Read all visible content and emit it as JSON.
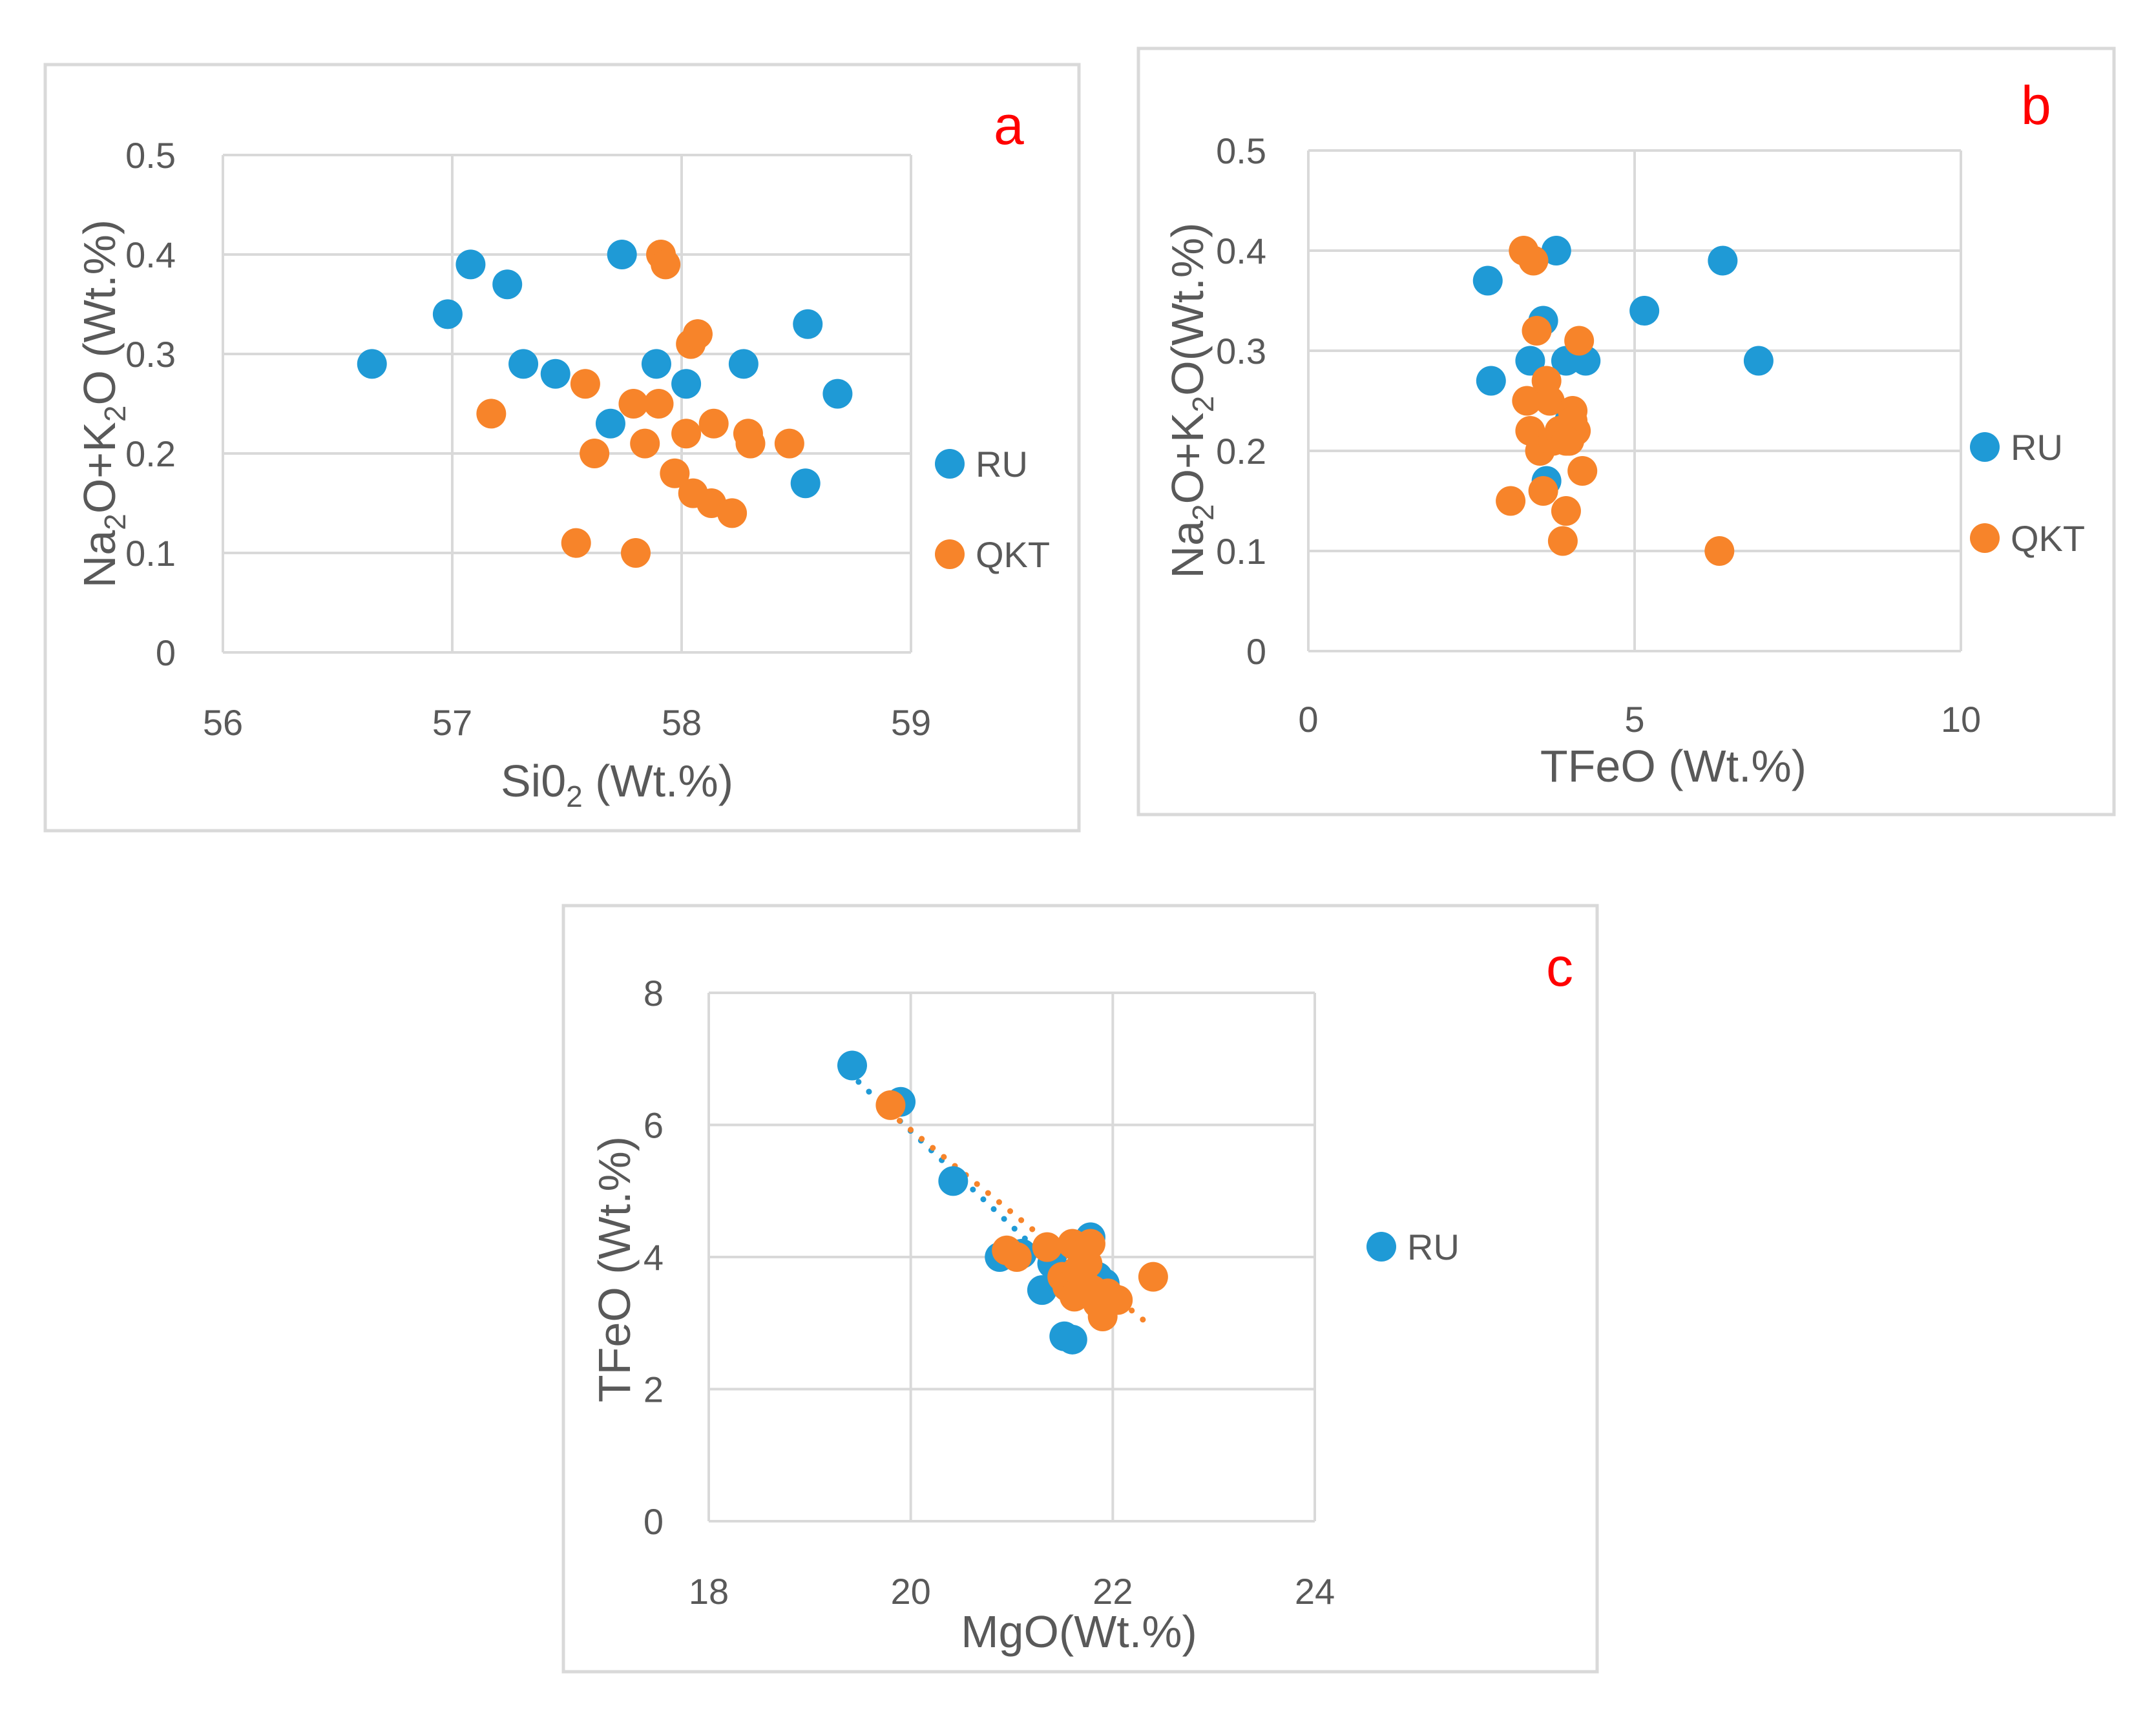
{
  "colors": {
    "RU": "#1f9ad6",
    "QKT": "#f7842a",
    "grid": "#d9d9d9",
    "text": "#595959",
    "label": "#ff0000"
  },
  "chart_data": [
    {
      "panel": "a",
      "type": "scatter",
      "xlabel_main": "Si0",
      "xlabel_sub": "2",
      "xlabel_tail": " (Wt.%)",
      "ylabel": [
        {
          "t": "Na",
          "sub": false
        },
        {
          "t": "2",
          "sub": true
        },
        {
          "t": "O+K",
          "sub": false
        },
        {
          "t": "2",
          "sub": true
        },
        {
          "t": "O (Wt.%)",
          "sub": false
        }
      ],
      "xlim": [
        56,
        59
      ],
      "ylim": [
        0,
        0.5
      ],
      "xticks": [
        56,
        57,
        58,
        59
      ],
      "yticks": [
        0,
        0.1,
        0.2,
        0.3,
        0.4,
        0.5
      ],
      "ytick_labels": [
        "0",
        "0.1",
        "0.2",
        "0.3",
        "0.4",
        "0.5"
      ],
      "legend": [
        "RU",
        "QKT"
      ],
      "series": [
        {
          "name": "RU",
          "x": [
            56.65,
            56.98,
            57.08,
            57.24,
            57.31,
            57.45,
            57.69,
            57.74,
            57.89,
            58.02,
            58.27,
            58.54,
            58.55,
            58.68
          ],
          "y": [
            0.29,
            0.34,
            0.39,
            0.37,
            0.29,
            0.28,
            0.23,
            0.4,
            0.29,
            0.27,
            0.29,
            0.17,
            0.33,
            0.26
          ]
        },
        {
          "name": "QKT",
          "x": [
            57.17,
            57.54,
            57.58,
            57.62,
            57.79,
            57.8,
            57.84,
            57.9,
            57.91,
            57.93,
            57.97,
            58.02,
            58.04,
            58.05,
            58.07,
            58.07,
            58.13,
            58.14,
            58.22,
            58.29,
            58.3,
            58.47
          ],
          "y": [
            0.24,
            0.11,
            0.27,
            0.2,
            0.25,
            0.1,
            0.21,
            0.25,
            0.4,
            0.39,
            0.18,
            0.22,
            0.31,
            0.16,
            0.32,
            0.32,
            0.15,
            0.23,
            0.14,
            0.22,
            0.21,
            0.21
          ]
        }
      ]
    },
    {
      "panel": "b",
      "type": "scatter",
      "xlabel_main": "TFeO (Wt.%)",
      "ylabel": [
        {
          "t": "Na",
          "sub": false
        },
        {
          "t": "2",
          "sub": true
        },
        {
          "t": "O+K",
          "sub": false
        },
        {
          "t": "2",
          "sub": true
        },
        {
          "t": "O(Wt.%)",
          "sub": false
        }
      ],
      "xlim": [
        0,
        10
      ],
      "ylim": [
        0,
        0.5
      ],
      "xticks": [
        0,
        5,
        10
      ],
      "yticks": [
        0,
        0.1,
        0.2,
        0.3,
        0.4,
        0.5
      ],
      "ytick_labels": [
        "0",
        "0.1",
        "0.2",
        "0.3",
        "0.4",
        "0.5"
      ],
      "legend": [
        "RU",
        "QKT"
      ],
      "series": [
        {
          "name": "RU",
          "x": [
            2.75,
            2.8,
            3.4,
            3.6,
            3.65,
            3.8,
            3.95,
            4.25,
            5.15,
            6.35,
            6.9,
            4.0
          ],
          "y": [
            0.37,
            0.27,
            0.29,
            0.33,
            0.17,
            0.4,
            0.29,
            0.29,
            0.34,
            0.39,
            0.29,
            0.23
          ]
        },
        {
          "name": "QKT",
          "x": [
            3.1,
            3.3,
            3.35,
            3.4,
            3.45,
            3.5,
            3.55,
            3.6,
            3.65,
            3.7,
            3.75,
            3.85,
            3.9,
            3.95,
            4.0,
            4.05,
            4.1,
            4.15,
            4.2,
            6.3,
            4.05,
            3.95
          ],
          "y": [
            0.15,
            0.4,
            0.25,
            0.22,
            0.39,
            0.32,
            0.2,
            0.16,
            0.27,
            0.25,
            0.21,
            0.22,
            0.11,
            0.14,
            0.21,
            0.24,
            0.22,
            0.31,
            0.18,
            0.1,
            0.23,
            0.21
          ]
        }
      ]
    },
    {
      "panel": "c",
      "type": "scatter",
      "xlabel_main": "MgO(Wt.%)",
      "ylabel": [
        {
          "t": "TFeO (Wt.%)",
          "sub": false
        }
      ],
      "xlim": [
        18,
        24
      ],
      "ylim": [
        0,
        8
      ],
      "xticks": [
        18,
        20,
        22,
        24
      ],
      "yticks": [
        0,
        2,
        4,
        6,
        8
      ],
      "ytick_labels": [
        "0",
        "2",
        "4",
        "6",
        "8"
      ],
      "legend": [
        "RU"
      ],
      "series": [
        {
          "name": "RU",
          "x": [
            19.42,
            19.9,
            20.42,
            20.88,
            21.1,
            21.3,
            21.4,
            21.52,
            21.6,
            21.68,
            21.78,
            21.85,
            21.92,
            21.95
          ],
          "y": [
            6.9,
            6.35,
            5.15,
            4.0,
            4.05,
            3.5,
            3.9,
            2.8,
            2.75,
            4.1,
            4.3,
            3.7,
            3.6,
            3.3
          ]
        },
        {
          "name": "QKT",
          "x": [
            19.8,
            20.95,
            21.05,
            21.35,
            21.5,
            21.55,
            21.6,
            21.62,
            21.65,
            21.7,
            21.72,
            21.75,
            21.78,
            21.8,
            21.85,
            21.9,
            21.95,
            22.05,
            22.4
          ],
          "y": [
            6.3,
            4.1,
            4.0,
            4.15,
            3.7,
            3.55,
            4.2,
            3.4,
            3.8,
            4.05,
            3.6,
            3.9,
            4.2,
            3.5,
            3.3,
            3.1,
            3.45,
            3.35,
            3.7
          ]
        }
      ],
      "trendlines": [
        {
          "series": "RU",
          "x": [
            19.38,
            21.95
          ],
          "y": [
            6.8,
            3.1
          ]
        },
        {
          "series": "QKT",
          "x": [
            19.78,
            22.3
          ],
          "y": [
            6.2,
            3.05
          ]
        }
      ]
    }
  ]
}
